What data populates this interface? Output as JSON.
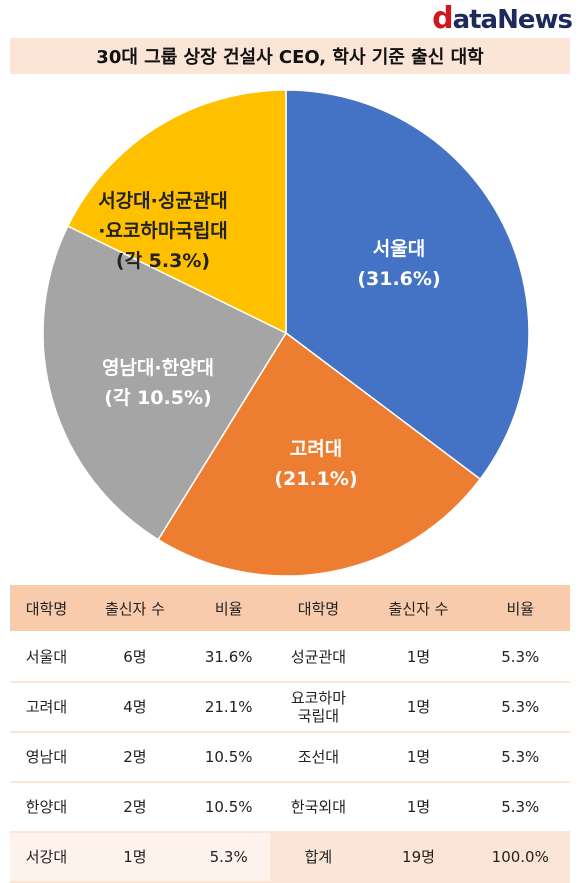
{
  "logo": {
    "d": "d",
    "rest": "ataNews"
  },
  "title": "30대 그룹 상장 건설사 CEO, 학사 기준 출신 대학",
  "chart_data": {
    "type": "pie",
    "slices": [
      {
        "label_lines": [
          "서울대",
          "(31.6%)"
        ],
        "value": 31.6,
        "color": "#4472c4"
      },
      {
        "label_lines": [
          "고려대",
          "(21.1%)"
        ],
        "value": 21.1,
        "color": "#ed7d31"
      },
      {
        "label_lines": [
          "영남대·한양대",
          "(각 10.5%)"
        ],
        "value": 21.0,
        "color": "#a5a5a5"
      },
      {
        "label_lines": [
          "서강대·성균관대",
          "·요코하마국립대",
          "(각 5.3%)"
        ],
        "value": 15.9,
        "color": "#ffc000"
      }
    ]
  },
  "table": {
    "headers": [
      "대학명",
      "출신자 수",
      "비율",
      "대학명",
      "출신자 수",
      "비율"
    ],
    "rows": [
      [
        "서울대",
        "6명",
        "31.6%",
        "성균관대",
        "1명",
        "5.3%"
      ],
      [
        "고려대",
        "4명",
        "21.1%",
        "요코하마\n국립대",
        "1명",
        "5.3%"
      ],
      [
        "영남대",
        "2명",
        "10.5%",
        "조선대",
        "1명",
        "5.3%"
      ],
      [
        "한양대",
        "2명",
        "10.5%",
        "한국외대",
        "1명",
        "5.3%"
      ],
      [
        "서강대",
        "1명",
        "5.3%",
        "합계",
        "19명",
        "100.0%"
      ]
    ]
  }
}
